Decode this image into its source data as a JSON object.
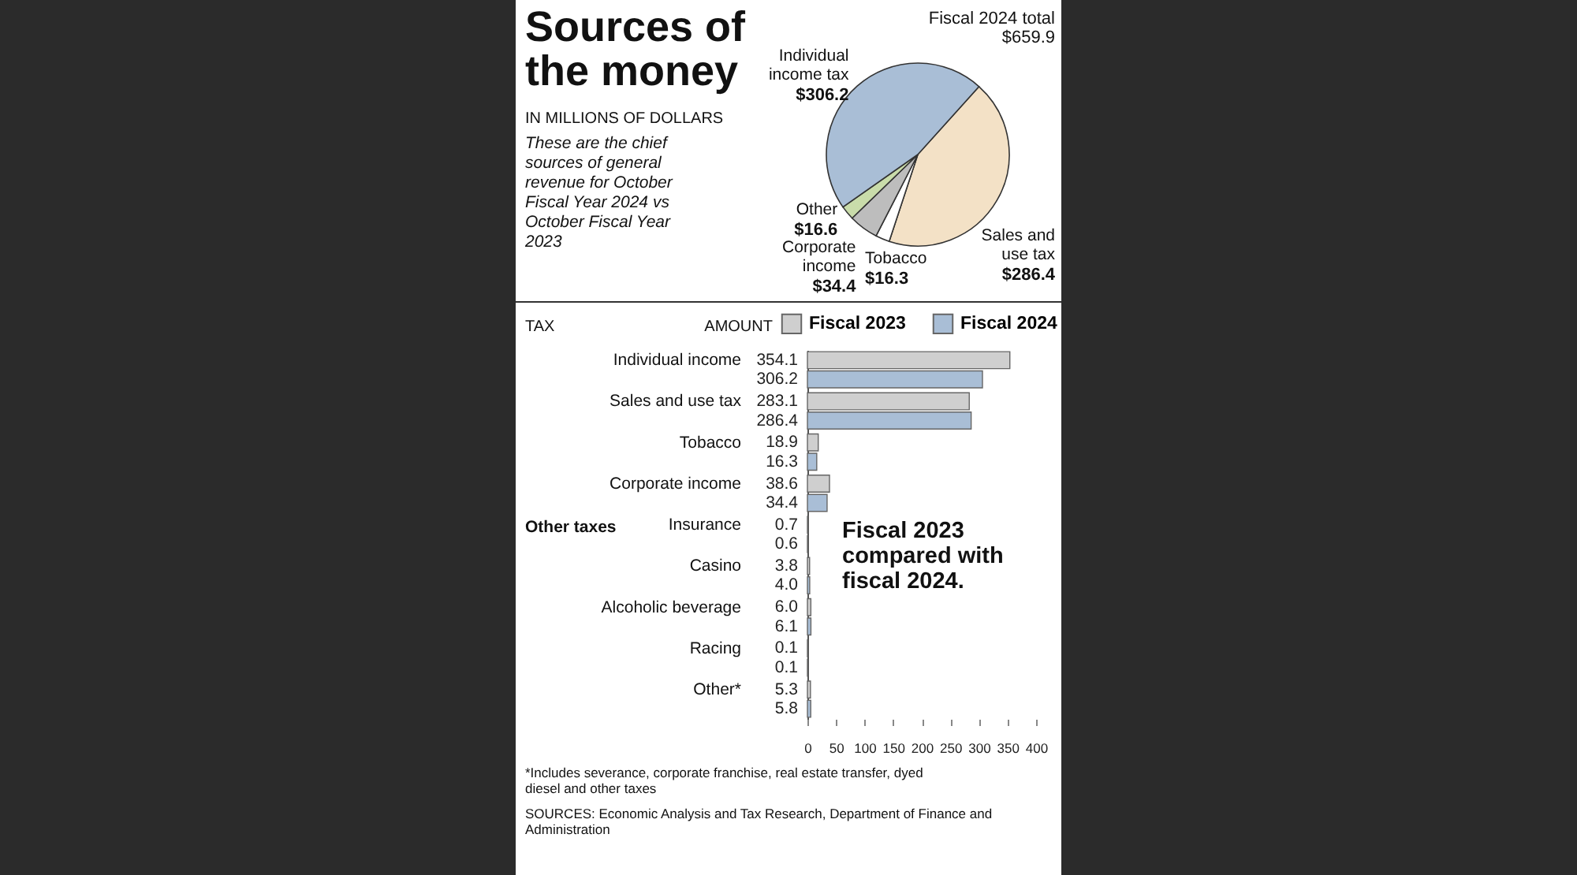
{
  "chart_data": [
    {
      "type": "pie",
      "title": "Sources of the money",
      "subtitle": "IN MILLIONS OF DOLLARS",
      "categories": [
        "Sales and use tax",
        "Tobacco",
        "Corporate income",
        "Other",
        "Individual income tax"
      ],
      "values": [
        286.4,
        16.3,
        34.4,
        16.6,
        306.2
      ],
      "value_labels": [
        "$286.4",
        "$16.3",
        "$34.4",
        "$16.6",
        "$306.2"
      ],
      "colors": [
        "#f3e1c6",
        "#ffffff",
        "#bdbdbd",
        "#c9dcaa",
        "#a9bed6"
      ],
      "annotations": [
        "These are the chief sources of general revenue for October Fiscal Year 2024 vs October Fiscal Year 2023",
        "Fiscal 2024 total $659.9"
      ]
    },
    {
      "type": "bar",
      "orientation": "horizontal",
      "ylabel": "TAX",
      "categories": [
        "Individual income",
        "Sales and use tax",
        "Tobacco",
        "Corporate income",
        "Insurance",
        "Casino",
        "Alcoholic beverage",
        "Racing",
        "Other*"
      ],
      "series": [
        {
          "name": "Fiscal 2023",
          "color": "#cfcfcf",
          "values": [
            354.1,
            283.1,
            18.9,
            38.6,
            0.7,
            3.8,
            6.0,
            0.1,
            5.3
          ],
          "value_labels": [
            "354.1",
            "283.1",
            "18.9",
            "38.6",
            "0.7",
            "3.8",
            "6.0",
            "0.1",
            "5.3"
          ]
        },
        {
          "name": "Fiscal 2024",
          "color": "#a9bed6",
          "values": [
            306.2,
            286.4,
            16.3,
            34.4,
            0.6,
            4.0,
            6.1,
            0.1,
            5.8
          ],
          "value_labels": [
            "306.2",
            "286.4",
            "16.3",
            "34.4",
            "0.6",
            "4.0",
            "6.1",
            "0.1",
            "5.8"
          ]
        }
      ],
      "xlim": [
        0,
        400
      ],
      "xticks": [
        0,
        50,
        100,
        150,
        200,
        250,
        300,
        350,
        400
      ],
      "legend": "top right",
      "annotations": [
        "AMOUNT",
        "Other taxes",
        "Fiscal 2023 compared with fiscal 2024.",
        "*Includes severance, corporate franchise, real estate transfer, dyed diesel and other taxes",
        "SOURCES: Economic Analysis and Tax Research, Department of Finance and Administration"
      ]
    }
  ]
}
